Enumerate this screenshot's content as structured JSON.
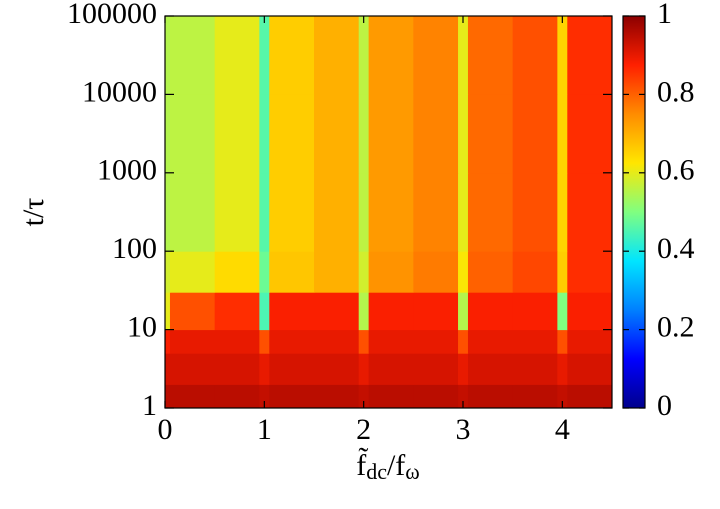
{
  "chart_data": {
    "type": "heatmap",
    "xlabel": [
      "f̃",
      "dc",
      "/f",
      "ω"
    ],
    "ylabel": "t/τ",
    "x_edges": [
      0,
      0.05,
      0.5,
      0.95,
      1.05,
      1.5,
      1.95,
      2.05,
      2.5,
      2.95,
      3.05,
      3.5,
      3.95,
      4.05,
      4.5
    ],
    "y_edges": [
      1,
      2,
      5,
      10,
      30,
      100,
      1000,
      10000,
      100000
    ],
    "z": [
      [
        0.95,
        0.95,
        0.95,
        0.94,
        0.95,
        0.95,
        0.94,
        0.95,
        0.95,
        0.94,
        0.95,
        0.95,
        0.94,
        0.95
      ],
      [
        0.92,
        0.92,
        0.92,
        0.9,
        0.92,
        0.92,
        0.9,
        0.92,
        0.92,
        0.9,
        0.92,
        0.92,
        0.9,
        0.92
      ],
      [
        0.88,
        0.9,
        0.9,
        0.82,
        0.9,
        0.9,
        0.82,
        0.9,
        0.9,
        0.82,
        0.9,
        0.9,
        0.82,
        0.9
      ],
      [
        0.6,
        0.82,
        0.86,
        0.45,
        0.88,
        0.88,
        0.55,
        0.88,
        0.88,
        0.55,
        0.88,
        0.88,
        0.5,
        0.88
      ],
      [
        0.58,
        0.6,
        0.64,
        0.48,
        0.67,
        0.7,
        0.58,
        0.74,
        0.77,
        0.62,
        0.8,
        0.83,
        0.66,
        0.86
      ],
      [
        0.55,
        0.56,
        0.6,
        0.46,
        0.66,
        0.7,
        0.56,
        0.73,
        0.76,
        0.6,
        0.79,
        0.82,
        0.65,
        0.86
      ],
      [
        0.55,
        0.56,
        0.6,
        0.46,
        0.66,
        0.7,
        0.56,
        0.73,
        0.76,
        0.6,
        0.79,
        0.82,
        0.65,
        0.86
      ],
      [
        0.55,
        0.56,
        0.6,
        0.46,
        0.66,
        0.7,
        0.56,
        0.73,
        0.76,
        0.6,
        0.79,
        0.82,
        0.65,
        0.86
      ]
    ],
    "xlim": [
      0,
      4.5
    ],
    "xticks": [
      0,
      1,
      2,
      3,
      4
    ],
    "ylim": [
      1,
      100000
    ],
    "yticks": [
      1,
      10,
      100,
      1000,
      10000,
      100000
    ],
    "ylog": true,
    "zlim": [
      0,
      1
    ],
    "zticks": [
      0,
      0.2,
      0.4,
      0.6,
      0.8,
      1
    ],
    "colormap": [
      "#00008c",
      "#0000ff",
      "#0080ff",
      "#00e5ff",
      "#80ff80",
      "#ffe600",
      "#ff8c00",
      "#ff2000",
      "#8c0000"
    ]
  }
}
